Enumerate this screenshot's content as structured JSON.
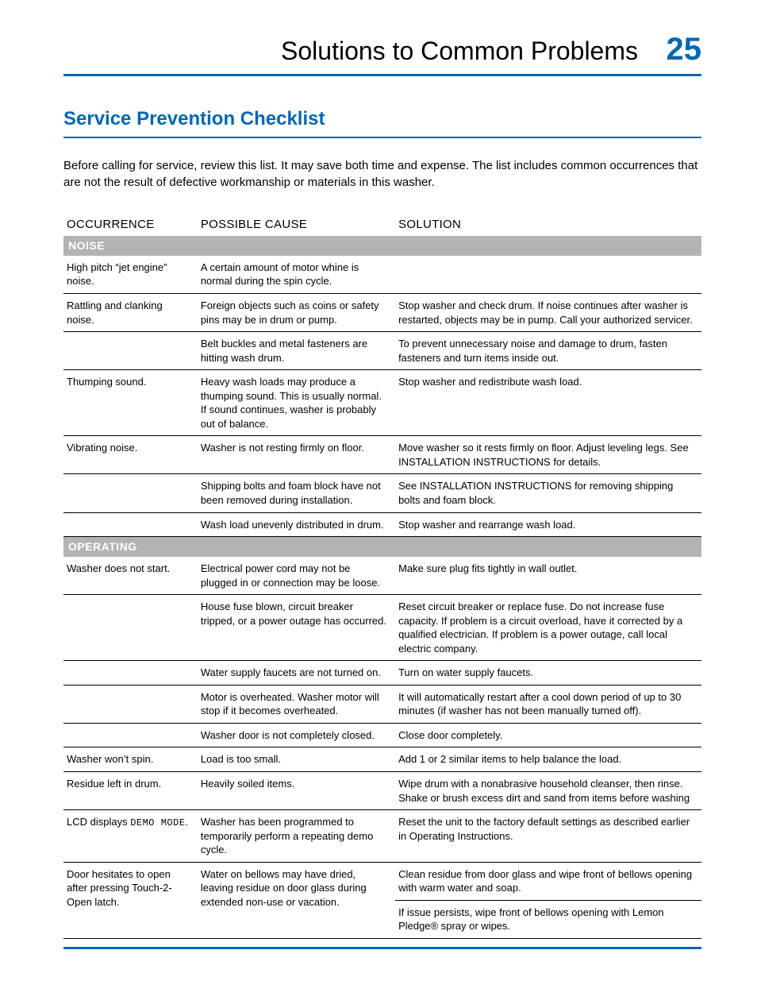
{
  "header": {
    "title": "Solutions to Common Problems",
    "page_number": "25"
  },
  "section_title": "Service Prevention Checklist",
  "intro": "Before calling for service, review this list. It may save both time and expense. The list includes common occurrences that are not the result of defective workmanship or materials in this washer.",
  "columns": {
    "occurrence": "OCCURRENCE",
    "cause": "POSSIBLE CAUSE",
    "solution": "SOLUTION"
  },
  "categories": {
    "noise": "NOISE",
    "operating": "OPERATING"
  },
  "rows": {
    "n1": {
      "occ": "High pitch “jet engine” noise.",
      "cause": "A certain amount of motor whine is normal during the spin cycle.",
      "sol": ""
    },
    "n2": {
      "occ": "Rattling and clanking noise.",
      "cause": "Foreign objects such as coins or safety pins may be in drum or pump.",
      "sol": "Stop washer and check drum. If noise continues after washer is restarted, objects may be in pump. Call your authorized servicer."
    },
    "n3": {
      "occ": "",
      "cause": "Belt buckles and metal fasteners are hitting wash drum.",
      "sol": "To prevent unnecessary noise and damage to drum, fasten fasteners and turn items inside out."
    },
    "n4": {
      "occ": "Thumping sound.",
      "cause": "Heavy wash loads may produce a thumping sound. This is usually normal. If sound continues, washer is probably out of balance.",
      "sol": "Stop washer and redistribute wash load."
    },
    "n5": {
      "occ": "Vibrating noise.",
      "cause": "Washer is not resting firmly on floor.",
      "sol": "Move washer so it rests firmly on floor. Adjust leveling legs. See INSTALLATION INSTRUCTIONS for details."
    },
    "n6": {
      "occ": "",
      "cause": "Shipping bolts and foam block have not been removed during installation.",
      "sol": "See INSTALLATION INSTRUCTIONS for removing shipping bolts and foam block."
    },
    "n7": {
      "occ": "",
      "cause": "Wash load unevenly distributed in drum.",
      "sol": "Stop washer and rearrange wash load."
    },
    "o1": {
      "occ": "Washer does not start.",
      "cause": "Electrical power cord may not be plugged in or connection may be loose.",
      "sol": "Make sure plug fits tightly in wall outlet."
    },
    "o2": {
      "occ": "",
      "cause": "House fuse blown, circuit breaker tripped, or a power outage has occurred.",
      "sol": "Reset circuit breaker or replace fuse. Do not increase fuse capacity. If problem is a circuit overload, have it corrected by a qualified electrician. If problem is a power outage, call local electric company."
    },
    "o3": {
      "occ": "",
      "cause": "Water supply faucets are not turned on.",
      "sol": "Turn on water supply faucets."
    },
    "o4": {
      "occ": "",
      "cause": "Motor is overheated. Washer motor will stop if it becomes overheated.",
      "sol": "It will automatically restart after a cool down period of up to 30 minutes (if washer has not been manually turned off)."
    },
    "o5": {
      "occ": "",
      "cause": "Washer door is not completely closed.",
      "sol": "Close door completely."
    },
    "o6": {
      "occ": "Washer won’t spin.",
      "cause": "Load is too small.",
      "sol": "Add 1 or 2 similar items to help balance the load."
    },
    "o7": {
      "occ": "Residue left in drum.",
      "cause": "Heavily soiled items.",
      "sol": "Wipe drum with a nonabrasive household cleanser, then rinse. Shake or brush excess dirt and sand from items before washing"
    },
    "o8": {
      "occ_pre": "LCD displays ",
      "occ_demo": "DEMO MODE",
      "occ_post": ".",
      "cause": "Washer has been programmed to temporarily perform a repeating demo cycle.",
      "sol": "Reset the unit to the factory default settings as described earlier in Operating Instructions."
    },
    "o9": {
      "occ": "Door hesitates to open after pressing Touch-2-Open latch.",
      "cause": "Water on bellows may have dried, leaving residue on door glass during extended non-use or vacation.",
      "sol": "Clean residue from door glass and wipe front of bellows opening with warm water and soap."
    },
    "o10": {
      "occ": "",
      "cause": "",
      "sol": "If issue persists, wipe front of bellows opening with Lemon Pledge® spray or wipes."
    }
  },
  "colors": {
    "accent": "#0067b1",
    "cat_bg": "#b3b3b3",
    "cat_fg": "#ffffff"
  }
}
